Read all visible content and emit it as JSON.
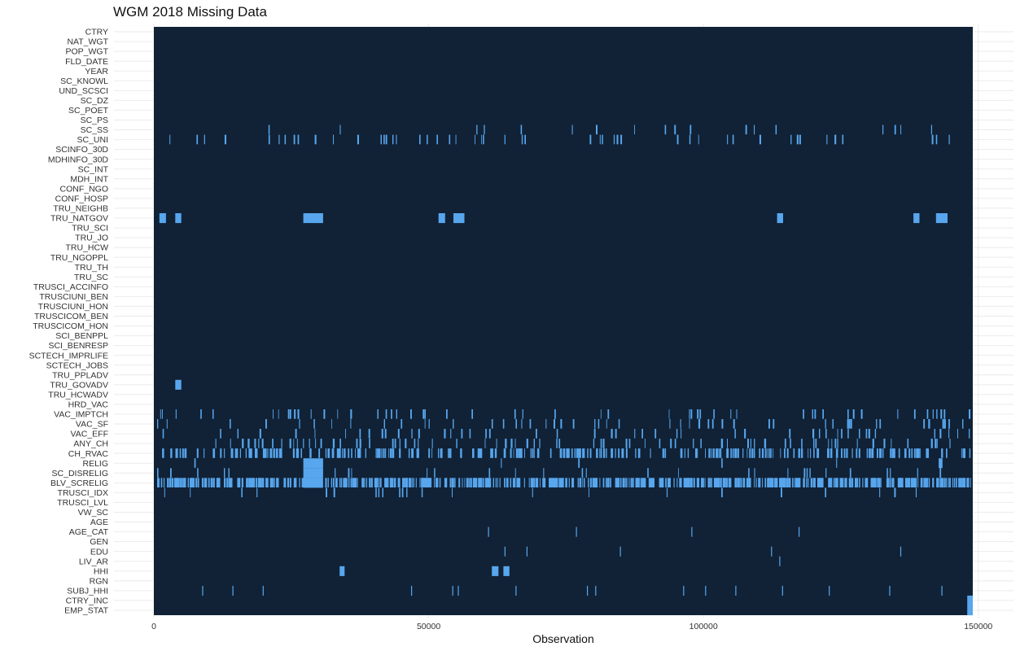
{
  "chart_data": {
    "type": "heatmap",
    "title": "WGM 2018 Missing Data",
    "xlabel": "Observation",
    "ylabel": "",
    "xlim": [
      0,
      149000
    ],
    "x_ticks": [
      0,
      50000,
      100000,
      150000
    ],
    "x_tick_labels": [
      "0",
      "50000",
      "100000",
      "150000"
    ],
    "grid": true,
    "colors": {
      "present": "#112236",
      "missing": "#57A6EE",
      "grid": "#EBEBEB"
    },
    "variables": [
      "CTRY",
      "NAT_WGT",
      "POP_WGT",
      "FLD_DATE",
      "YEAR",
      "SC_KNOWL",
      "UND_SCSCI",
      "SC_DZ",
      "SC_POET",
      "SC_PS",
      "SC_SS",
      "SC_UNI",
      "SCINFO_30D",
      "MDHINFO_30D",
      "SC_INT",
      "MDH_INT",
      "CONF_NGO",
      "CONF_HOSP",
      "TRU_NEIGHB",
      "TRU_NATGOV",
      "TRU_SCI",
      "TRU_JO",
      "TRU_HCW",
      "TRU_NGOPPL",
      "TRU_TH",
      "TRU_SC",
      "TRUSCI_ACCINFO",
      "TRUSCIUNI_BEN",
      "TRUSCIUNI_HON",
      "TRUSCICOM_BEN",
      "TRUSCICOM_HON",
      "SCI_BENPPL",
      "SCI_BENRESP",
      "SCTECH_IMPRLIFE",
      "SCTECH_JOBS",
      "TRU_PPLADV",
      "TRU_GOVADV",
      "TRU_HCWADV",
      "HRD_VAC",
      "VAC_IMPTCH",
      "VAC_SF",
      "VAC_EFF",
      "ANY_CH",
      "CH_RVAC",
      "RELIG",
      "SC_DISRELIG",
      "BLV_SCRELIG",
      "TRUSCI_IDX",
      "TRUSCI_LVL",
      "VW_SC",
      "AGE",
      "AGE_CAT",
      "GEN",
      "EDU",
      "LIV_AR",
      "HHI",
      "RGN",
      "SUBJ_HHI",
      "CTRY_INC",
      "EMP_STAT"
    ],
    "missing_blocks": {
      "TRU_NATGOV": [
        [
          1000,
          2200
        ],
        [
          3900,
          5000
        ],
        [
          27200,
          30800
        ],
        [
          51800,
          53000
        ],
        [
          54500,
          56500
        ],
        [
          113400,
          114500
        ],
        [
          138200,
          139300
        ],
        [
          142300,
          144400
        ]
      ],
      "TRU_GOVADV": [
        [
          3900,
          5000
        ]
      ],
      "RELIG": [
        [
          27200,
          30800
        ],
        [
          142800,
          143500
        ]
      ],
      "SC_DISRELIG": [
        [
          27200,
          30800
        ]
      ],
      "BLV_SCRELIG": [
        [
          27200,
          30800
        ]
      ],
      "HHI": [
        [
          33800,
          34700
        ],
        [
          61500,
          62700
        ],
        [
          63600,
          64700
        ]
      ],
      "CTRY_INC": [
        [
          148000,
          149000
        ]
      ],
      "EMP_STAT": [
        [
          148000,
          149000
        ]
      ]
    },
    "missing_density": {
      "SC_SS": 0.06,
      "SC_UNI": 0.13,
      "VAC_IMPTCH": 0.12,
      "VAC_SF": 0.14,
      "VAC_EFF": 0.15,
      "ANY_CH": 0.2,
      "CH_RVAC": 0.42,
      "RELIG": 0.01,
      "SC_DISRELIG": 0.07,
      "BLV_SCRELIG": 0.62,
      "TRUSCI_IDX": 0.09,
      "AGE_CAT": 0.0,
      "SUBJ_HHI": 0.0
    },
    "missing_lines": {
      "AGE_CAT": [
        60800,
        76800,
        97800,
        117300
      ],
      "EDU": [
        63800,
        67800,
        84800,
        112300,
        135800
      ],
      "LIV_AR": [
        113800
      ],
      "SUBJ_HHI": [
        8800,
        14300,
        19800,
        46800,
        54300,
        55300,
        65800,
        78800,
        80300,
        96300,
        100300,
        105800,
        114300,
        122800,
        133800,
        143300
      ]
    }
  }
}
